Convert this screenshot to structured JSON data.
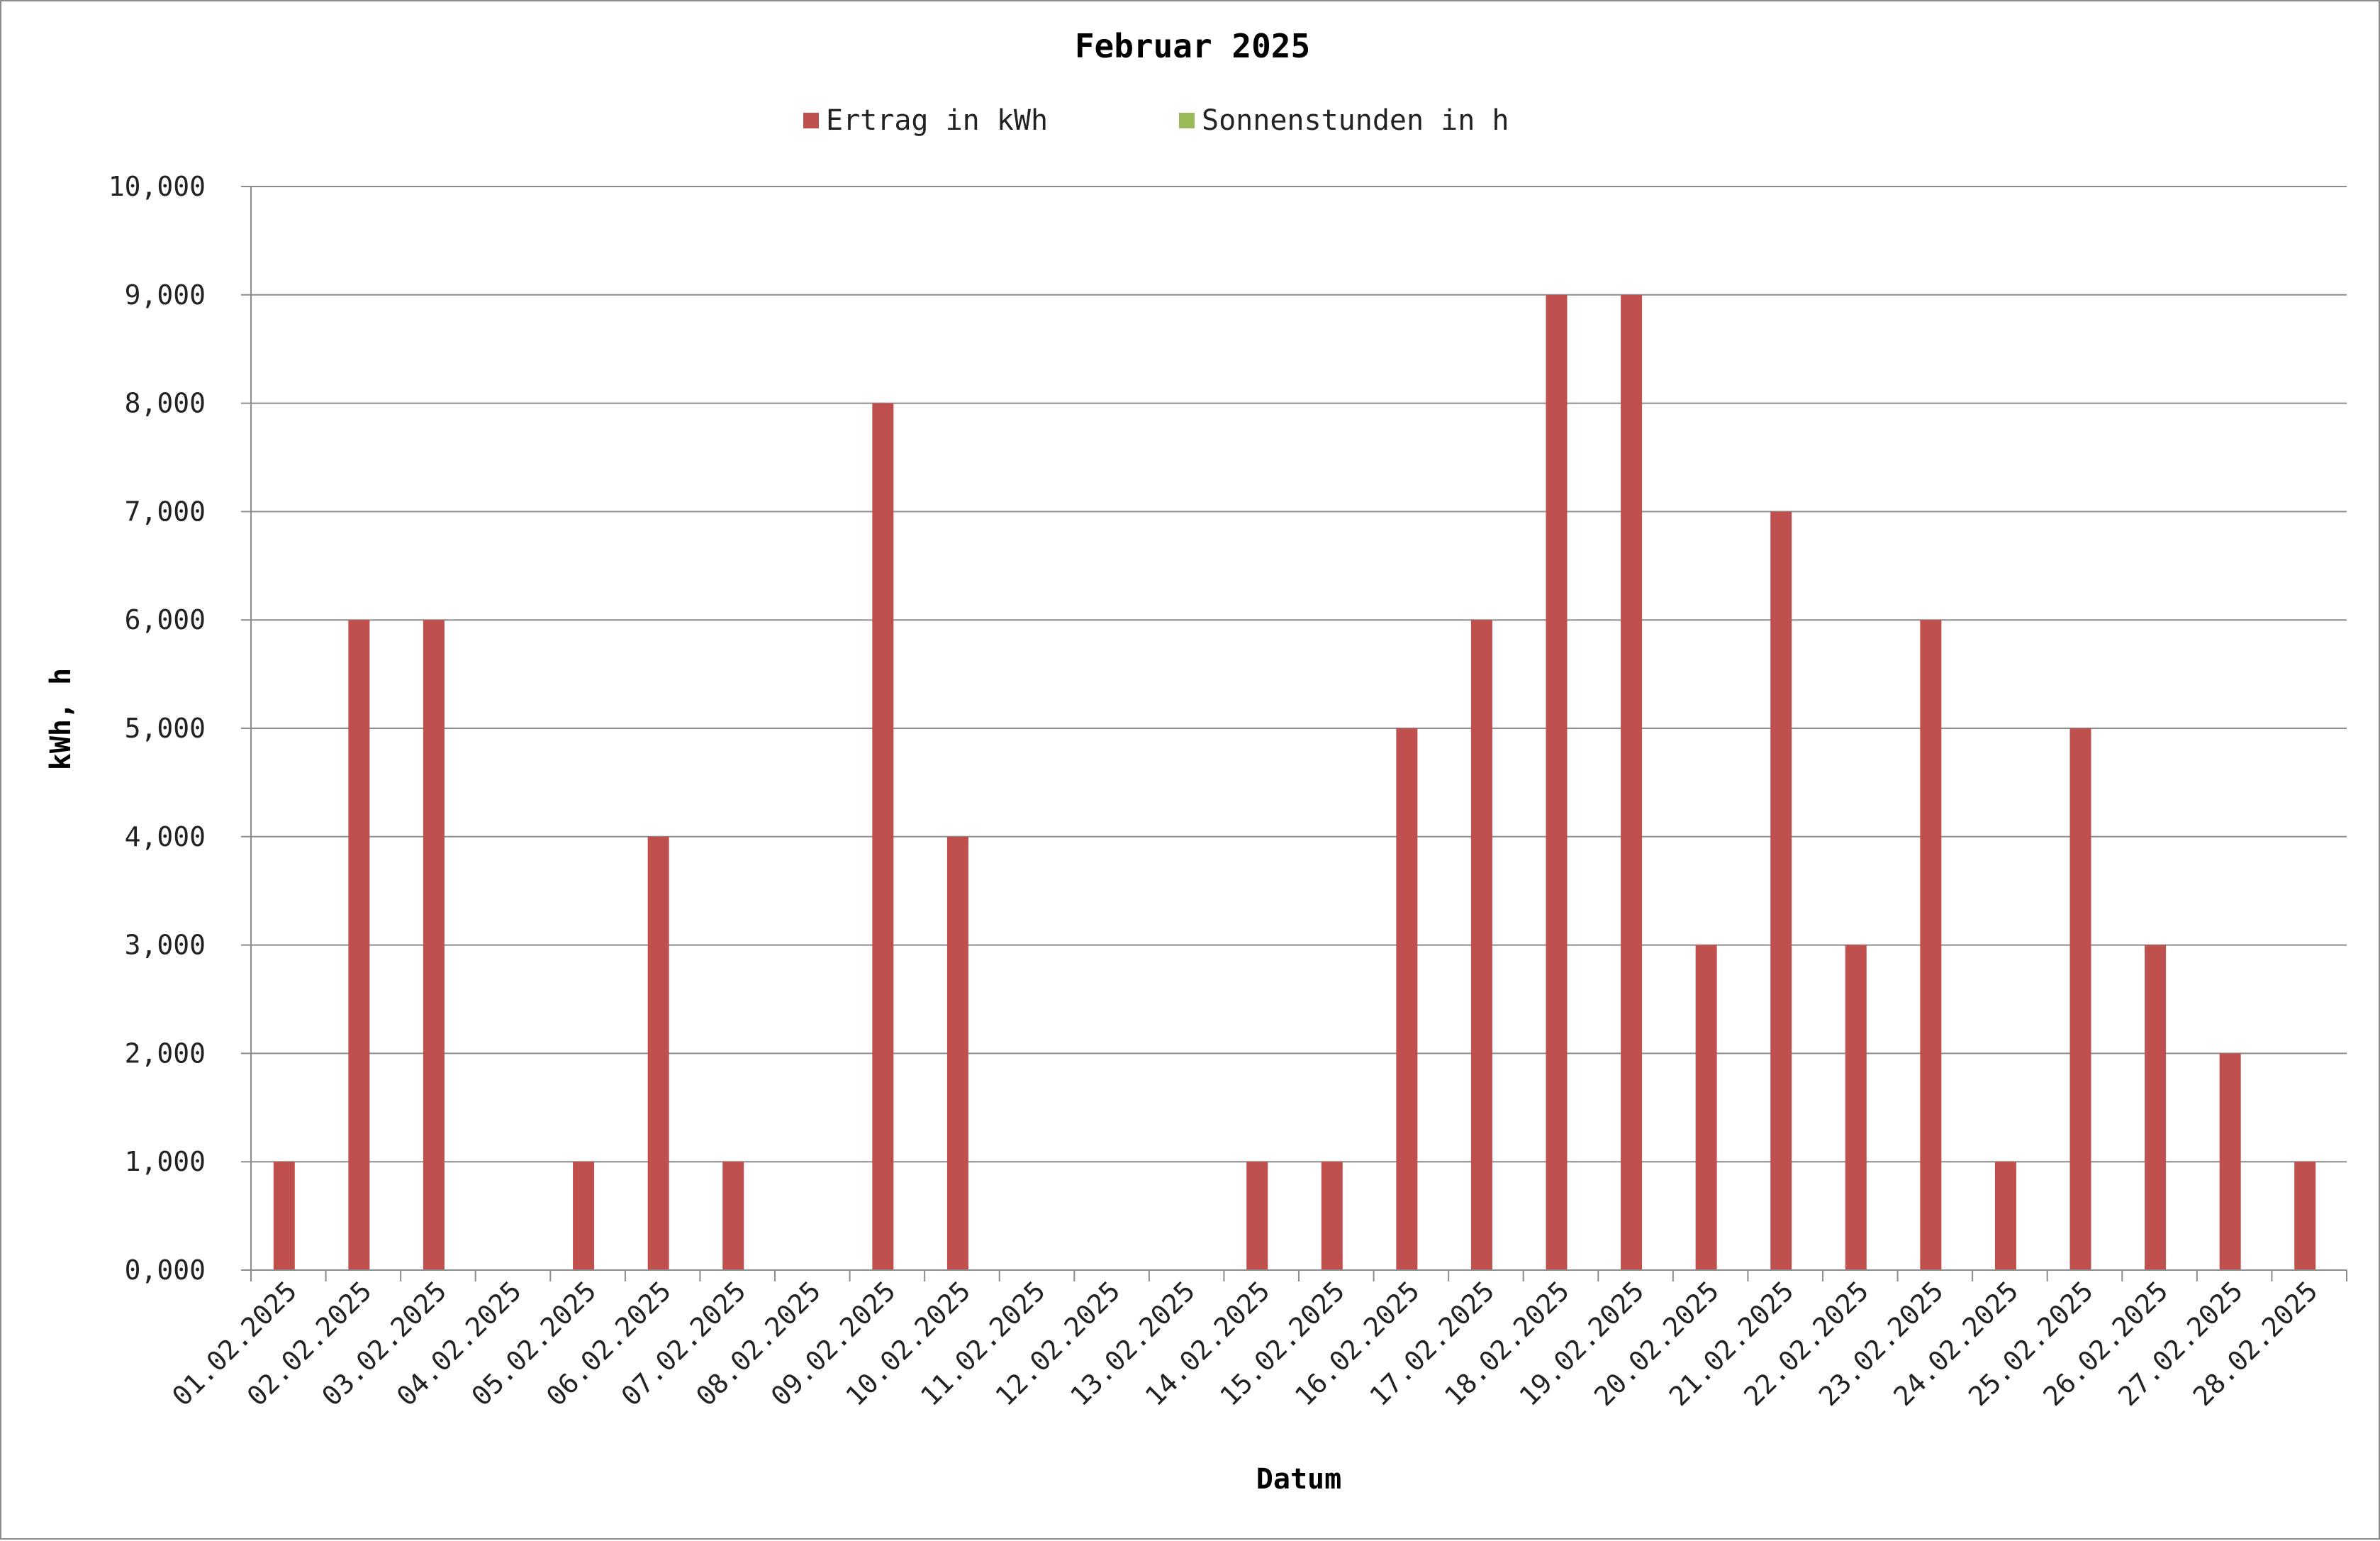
{
  "chart_data": {
    "type": "bar",
    "title": "Februar 2025",
    "xlabel": "Datum",
    "ylabel": "kWh, h",
    "ylim": [
      0,
      10
    ],
    "y_ticks": [
      {
        "value": 0,
        "label": "0,000"
      },
      {
        "value": 1,
        "label": "1,000"
      },
      {
        "value": 2,
        "label": "2,000"
      },
      {
        "value": 3,
        "label": "3,000"
      },
      {
        "value": 4,
        "label": "4,000"
      },
      {
        "value": 5,
        "label": "5,000"
      },
      {
        "value": 6,
        "label": "6,000"
      },
      {
        "value": 7,
        "label": "7,000"
      },
      {
        "value": 8,
        "label": "8,000"
      },
      {
        "value": 9,
        "label": "9,000"
      },
      {
        "value": 10,
        "label": "10,000"
      }
    ],
    "grid": true,
    "legend_position": "top",
    "categories": [
      "01.02.2025",
      "02.02.2025",
      "03.02.2025",
      "04.02.2025",
      "05.02.2025",
      "06.02.2025",
      "07.02.2025",
      "08.02.2025",
      "09.02.2025",
      "10.02.2025",
      "11.02.2025",
      "12.02.2025",
      "13.02.2025",
      "14.02.2025",
      "15.02.2025",
      "16.02.2025",
      "17.02.2025",
      "18.02.2025",
      "19.02.2025",
      "20.02.2025",
      "21.02.2025",
      "22.02.2025",
      "23.02.2025",
      "24.02.2025",
      "25.02.2025",
      "26.02.2025",
      "27.02.2025",
      "28.02.2025"
    ],
    "series": [
      {
        "name": "Ertrag in kWh",
        "color": "#c0504d",
        "values": [
          1,
          6,
          6,
          0,
          1,
          4,
          1,
          0,
          8,
          4,
          0,
          0,
          0,
          1,
          1,
          5,
          6,
          9,
          9,
          3,
          7,
          3,
          6,
          1,
          5,
          3,
          2,
          1
        ]
      },
      {
        "name": "Sonnenstunden in h",
        "color": "#9bbb59",
        "values": [
          0,
          0,
          0,
          0,
          0,
          0,
          0,
          0,
          0,
          0,
          0,
          0,
          0,
          0,
          0,
          0,
          0,
          0,
          0,
          0,
          0,
          0,
          0,
          0,
          0,
          0,
          0,
          0
        ]
      }
    ]
  }
}
